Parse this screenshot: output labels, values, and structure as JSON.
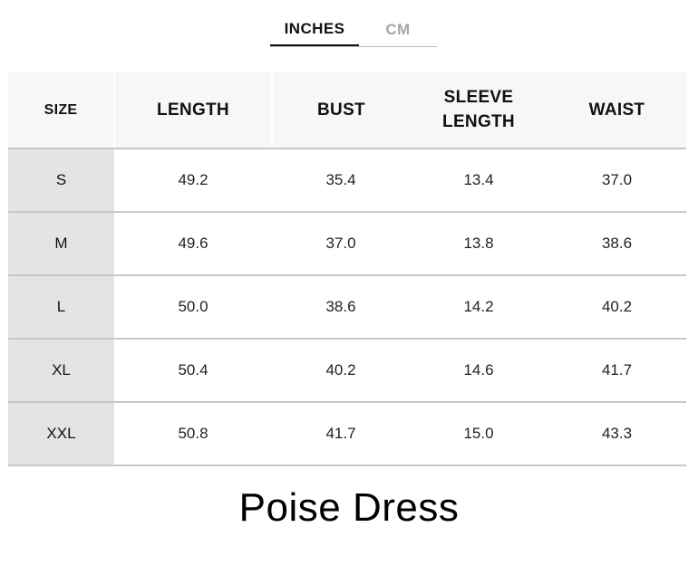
{
  "tabs": [
    {
      "label": "INCHES",
      "active": true
    },
    {
      "label": "CM",
      "active": false
    }
  ],
  "table": {
    "headers": [
      "SIZE",
      "LENGTH",
      "BUST",
      "SLEEVE LENGTH",
      "WAIST"
    ],
    "rows": [
      [
        "S",
        "49.2",
        "35.4",
        "13.4",
        "37.0"
      ],
      [
        "M",
        "49.6",
        "37.0",
        "13.8",
        "38.6"
      ],
      [
        "L",
        "50.0",
        "38.6",
        "14.2",
        "40.2"
      ],
      [
        "XL",
        "50.4",
        "40.2",
        "14.6",
        "41.7"
      ],
      [
        "XXL",
        "50.8",
        "41.7",
        "15.0",
        "43.3"
      ]
    ]
  },
  "product_title": "Poise Dress",
  "colors": {
    "active_tab": "#111111",
    "inactive_tab": "#a5a5a5",
    "header_bg": "#f7f7f7",
    "size_column_bg": "#e4e4e4",
    "row_divider": "#c4c8c8"
  }
}
